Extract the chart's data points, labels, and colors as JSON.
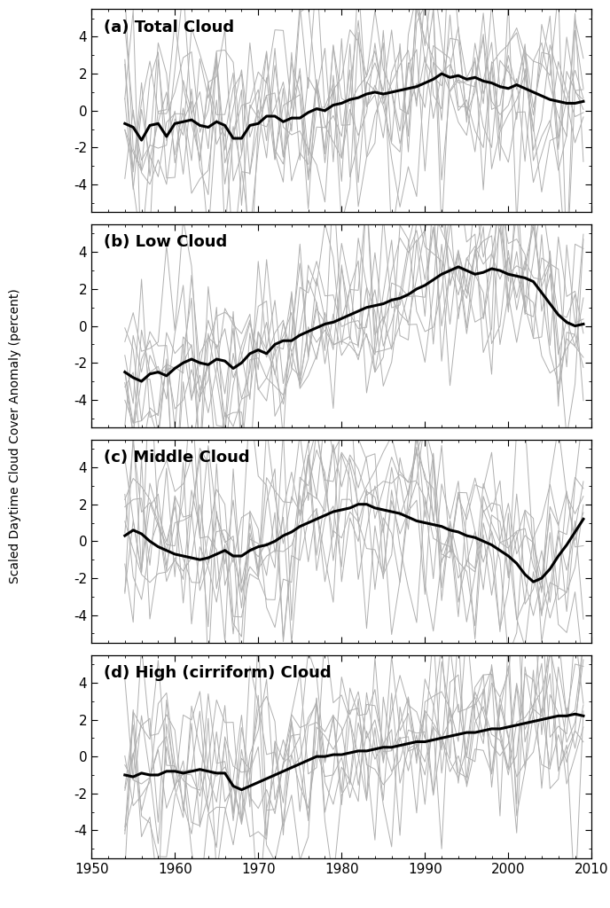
{
  "titles": [
    "(a) Total Cloud",
    "(b) Low Cloud",
    "(c) Middle Cloud",
    "(d) High (cirriform) Cloud"
  ],
  "ylabel": "Scaled Daytime Cloud Cover Anomaly (percent)",
  "xlim": [
    1950,
    2010
  ],
  "ylim": [
    -5.5,
    5.5
  ],
  "yticks": [
    -4,
    -2,
    0,
    2,
    4
  ],
  "xticks": [
    1950,
    1960,
    1970,
    1980,
    1990,
    2000,
    2010
  ],
  "xticklabels": [
    "1950",
    "1960",
    "1970",
    "1980",
    "1990",
    "2000",
    "2010"
  ],
  "gray_color": "#b0b0b0",
  "black_color": "#000000",
  "n_gray_lines": 9,
  "black_lw": 2.2,
  "gray_lw": 0.7,
  "seed": 12,
  "panel_black_lines": [
    [
      -0.7,
      -0.9,
      -1.6,
      -0.8,
      -0.7,
      -1.4,
      -0.7,
      -0.6,
      -0.5,
      -0.8,
      -0.9,
      -0.6,
      -0.8,
      -1.5,
      -1.5,
      -0.8,
      -0.7,
      -0.3,
      -0.3,
      -0.6,
      -0.4,
      -0.4,
      -0.1,
      0.1,
      0.0,
      0.3,
      0.4,
      0.6,
      0.7,
      0.9,
      1.0,
      0.9,
      1.0,
      1.1,
      1.2,
      1.3,
      1.5,
      1.7,
      2.0,
      1.8,
      1.9,
      1.7,
      1.8,
      1.6,
      1.5,
      1.3,
      1.2,
      1.4,
      1.2,
      1.0,
      0.8,
      0.6,
      0.5,
      0.4,
      0.4,
      0.5
    ],
    [
      -2.5,
      -2.8,
      -3.0,
      -2.6,
      -2.5,
      -2.7,
      -2.3,
      -2.0,
      -1.8,
      -2.0,
      -2.1,
      -1.8,
      -1.9,
      -2.3,
      -2.0,
      -1.5,
      -1.3,
      -1.5,
      -1.0,
      -0.8,
      -0.8,
      -0.5,
      -0.3,
      -0.1,
      0.1,
      0.2,
      0.4,
      0.6,
      0.8,
      1.0,
      1.1,
      1.2,
      1.4,
      1.5,
      1.7,
      2.0,
      2.2,
      2.5,
      2.8,
      3.0,
      3.2,
      3.0,
      2.8,
      2.9,
      3.1,
      3.0,
      2.8,
      2.7,
      2.6,
      2.4,
      1.8,
      1.2,
      0.6,
      0.2,
      0.0,
      0.1
    ],
    [
      0.3,
      0.6,
      0.4,
      0.0,
      -0.3,
      -0.5,
      -0.7,
      -0.8,
      -0.9,
      -1.0,
      -0.9,
      -0.7,
      -0.5,
      -0.8,
      -0.8,
      -0.5,
      -0.3,
      -0.2,
      0.0,
      0.3,
      0.5,
      0.8,
      1.0,
      1.2,
      1.4,
      1.6,
      1.7,
      1.8,
      2.0,
      2.0,
      1.8,
      1.7,
      1.6,
      1.5,
      1.3,
      1.1,
      1.0,
      0.9,
      0.8,
      0.6,
      0.5,
      0.3,
      0.2,
      0.0,
      -0.2,
      -0.5,
      -0.8,
      -1.2,
      -1.8,
      -2.2,
      -2.0,
      -1.5,
      -0.8,
      -0.2,
      0.5,
      1.2
    ],
    [
      -1.0,
      -1.1,
      -0.9,
      -1.0,
      -1.0,
      -0.8,
      -0.8,
      -0.9,
      -0.8,
      -0.7,
      -0.8,
      -0.9,
      -0.9,
      -1.6,
      -1.8,
      -1.6,
      -1.4,
      -1.2,
      -1.0,
      -0.8,
      -0.6,
      -0.4,
      -0.2,
      0.0,
      0.0,
      0.1,
      0.1,
      0.2,
      0.3,
      0.3,
      0.4,
      0.5,
      0.5,
      0.6,
      0.7,
      0.8,
      0.8,
      0.9,
      1.0,
      1.1,
      1.2,
      1.3,
      1.3,
      1.4,
      1.5,
      1.5,
      1.6,
      1.7,
      1.8,
      1.9,
      2.0,
      2.1,
      2.2,
      2.2,
      2.3,
      2.2
    ]
  ]
}
